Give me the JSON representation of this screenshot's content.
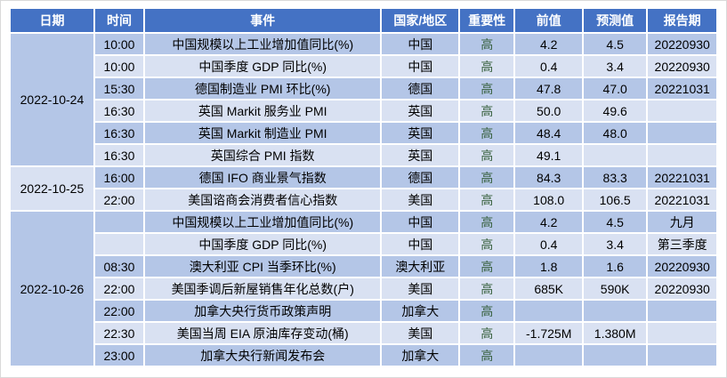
{
  "colors": {
    "header_bg": "#4472C4",
    "header_text": "#FFFFFF",
    "band_dark": "#B4C6E7",
    "band_light": "#D9E1F2",
    "grid": "#FFFFFF",
    "text": "#000000",
    "importance_green": "#355E3B"
  },
  "table": {
    "columns": [
      "日期",
      "时间",
      "事件",
      "国家/地区",
      "重要性",
      "前值",
      "预测值",
      "报告期"
    ],
    "rows": [
      {
        "date": "2022-10-24",
        "time": "10:00",
        "event": "中国规模以上工业增加值同比(%)",
        "country": "中国",
        "importance": "高",
        "previous": "4.2",
        "forecast": "4.5",
        "period": "20220930"
      },
      {
        "time": "10:00",
        "event": "中国季度 GDP 同比(%)",
        "country": "中国",
        "importance": "高",
        "previous": "0.4",
        "forecast": "3.4",
        "period": "20220930"
      },
      {
        "time": "15:30",
        "event": "德国制造业 PMI 环比(%)",
        "country": "德国",
        "importance": "高",
        "previous": "47.8",
        "forecast": "47.0",
        "period": "20221031"
      },
      {
        "time": "16:30",
        "event": "英国 Markit 服务业 PMI",
        "country": "英国",
        "importance": "高",
        "previous": "50.0",
        "forecast": "49.6",
        "period": ""
      },
      {
        "time": "16:30",
        "event": "英国 Markit 制造业 PMI",
        "country": "英国",
        "importance": "高",
        "previous": "48.4",
        "forecast": "48.0",
        "period": ""
      },
      {
        "time": "16:30",
        "event": "英国综合 PMI 指数",
        "country": "英国",
        "importance": "高",
        "previous": "49.1",
        "forecast": "",
        "period": ""
      },
      {
        "date": "2022-10-25",
        "time": "16:00",
        "event": "德国 IFO 商业景气指数",
        "country": "德国",
        "importance": "高",
        "previous": "84.3",
        "forecast": "83.3",
        "period": "20221031"
      },
      {
        "time": "22:00",
        "event": "美国谘商会消费者信心指数",
        "country": "美国",
        "importance": "高",
        "previous": "108.0",
        "forecast": "106.5",
        "period": "20221031"
      },
      {
        "date": "2022-10-26",
        "time": "",
        "event": "中国规模以上工业增加值同比(%)",
        "country": "中国",
        "importance": "高",
        "previous": "4.2",
        "forecast": "4.5",
        "period": "九月"
      },
      {
        "time": "",
        "event": "中国季度 GDP 同比(%)",
        "country": "中国",
        "importance": "高",
        "previous": "0.4",
        "forecast": "3.4",
        "period": "第三季度"
      },
      {
        "time": "08:30",
        "event": "澳大利亚 CPI 当季环比(%)",
        "country": "澳大利亚",
        "importance": "高",
        "previous": "1.8",
        "forecast": "1.6",
        "period": "20220930"
      },
      {
        "time": "22:00",
        "event": "美国季调后新屋销售年化总数(户)",
        "country": "美国",
        "importance": "高",
        "previous": "685K",
        "forecast": "590K",
        "period": "20220930"
      },
      {
        "time": "22:00",
        "event": "加拿大央行货币政策声明",
        "country": "加拿大",
        "importance": "高",
        "previous": "",
        "forecast": "",
        "period": ""
      },
      {
        "time": "22:30",
        "event": "美国当周 EIA 原油库存变动(桶)",
        "country": "美国",
        "importance": "高",
        "previous": "-1.725M",
        "forecast": "1.380M",
        "period": ""
      },
      {
        "time": "23:00",
        "event": "加拿大央行新闻发布会",
        "country": "加拿大",
        "importance": "高",
        "previous": "",
        "forecast": "",
        "period": ""
      }
    ]
  }
}
